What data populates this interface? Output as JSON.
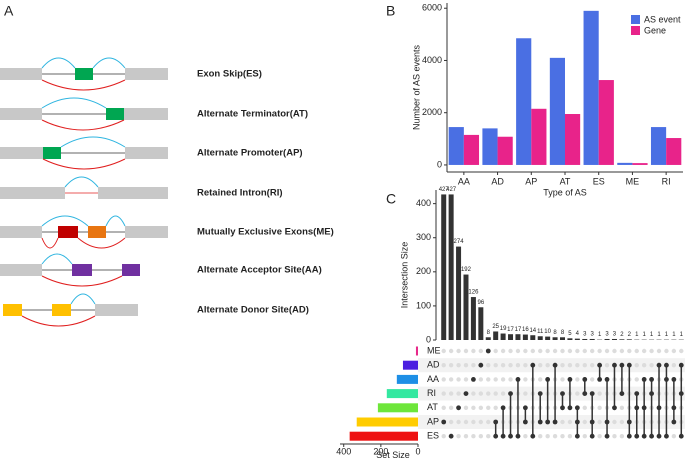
{
  "panel_labels": [
    "A",
    "B",
    "C"
  ],
  "diagram": {
    "events": [
      "Exon Skip(ES)",
      "Alternate Terminator(AT)",
      "Alternate Promoter(AP)",
      "Retained Intron(RI)",
      "Mutually Exclusive Exons(ME)",
      "Alternate Acceptor Site(AA)",
      "Alternate Donor Site(AD)"
    ]
  },
  "chart_data": [
    {
      "type": "bar",
      "categories": [
        "AA",
        "AD",
        "AP",
        "AT",
        "ES",
        "ME",
        "RI"
      ],
      "series": [
        {
          "name": "AS event",
          "color": "#4a6fe3",
          "values": [
            1450,
            1400,
            4850,
            4100,
            5900,
            80,
            1450
          ]
        },
        {
          "name": "Gene",
          "color": "#e8238a",
          "values": [
            1150,
            1080,
            2150,
            1950,
            3250,
            70,
            1030
          ]
        }
      ],
      "ylabel": "Number of AS events",
      "xlabel": "Type of AS",
      "ylim": [
        -270,
        6200
      ],
      "yticks": [
        0,
        2000,
        4000,
        6000
      ],
      "legend": "top-right"
    },
    {
      "type": "upset",
      "ylabel": "Intersection Size",
      "ylim": [
        0,
        440
      ],
      "yticks": [
        0,
        100,
        200,
        300,
        400
      ],
      "set_size_label": "Set Size",
      "set_size_lim": [
        0,
        420
      ],
      "set_size_ticks": [
        400,
        200,
        0
      ],
      "sets": [
        {
          "name": "ME",
          "size": 11,
          "color": "#e7298a"
        },
        {
          "name": "AD",
          "size": 81,
          "color": "#4b1fe0"
        },
        {
          "name": "AA",
          "size": 114,
          "color": "#1e8fe6"
        },
        {
          "name": "RI",
          "size": 168,
          "color": "#33e8a0"
        },
        {
          "name": "AT",
          "size": 216,
          "color": "#6ee63a"
        },
        {
          "name": "AP",
          "size": 330,
          "color": "#ffcc00"
        },
        {
          "name": "ES",
          "size": 368,
          "color": "#ee1111"
        }
      ],
      "intersections": [
        {
          "size": 427,
          "sets": [
            5
          ]
        },
        {
          "size": 427,
          "sets": [
            6
          ]
        },
        {
          "size": 274,
          "sets": [
            4
          ]
        },
        {
          "size": 192,
          "sets": [
            3
          ]
        },
        {
          "size": 126,
          "sets": [
            2
          ]
        },
        {
          "size": 96,
          "sets": [
            1
          ]
        },
        {
          "size": 8,
          "sets": [
            0
          ]
        },
        {
          "size": 25,
          "sets": [
            5,
            6
          ]
        },
        {
          "size": 19,
          "sets": [
            4,
            6
          ]
        },
        {
          "size": 17,
          "sets": [
            3,
            6
          ]
        },
        {
          "size": 17,
          "sets": [
            2,
            6
          ]
        },
        {
          "size": 16,
          "sets": [
            4,
            5
          ]
        },
        {
          "size": 14,
          "sets": [
            1,
            6
          ]
        },
        {
          "size": 11,
          "sets": [
            3,
            5
          ]
        },
        {
          "size": 10,
          "sets": [
            2,
            5
          ]
        },
        {
          "size": 8,
          "sets": [
            1,
            5
          ]
        },
        {
          "size": 8,
          "sets": [
            3,
            4
          ]
        },
        {
          "size": 5,
          "sets": [
            2,
            4
          ]
        },
        {
          "size": 4,
          "sets": [
            4,
            5,
            6
          ]
        },
        {
          "size": 3,
          "sets": [
            2,
            3
          ]
        },
        {
          "size": 3,
          "sets": [
            3,
            5,
            6
          ]
        },
        {
          "size": 1,
          "sets": [
            1,
            2
          ]
        },
        {
          "size": 3,
          "sets": [
            2,
            5,
            6
          ]
        },
        {
          "size": 3,
          "sets": [
            1,
            4
          ]
        },
        {
          "size": 2,
          "sets": [
            1,
            3
          ]
        },
        {
          "size": 2,
          "sets": [
            1,
            5,
            6
          ]
        },
        {
          "size": 1,
          "sets": [
            3,
            4,
            6
          ]
        },
        {
          "size": 1,
          "sets": [
            2,
            4,
            6
          ]
        },
        {
          "size": 1,
          "sets": [
            2,
            3,
            6
          ]
        },
        {
          "size": 1,
          "sets": [
            1,
            4,
            6
          ]
        },
        {
          "size": 1,
          "sets": [
            1,
            2,
            6
          ]
        },
        {
          "size": 1,
          "sets": [
            2,
            4,
            5
          ]
        },
        {
          "size": 1,
          "sets": [
            1,
            3,
            6
          ]
        }
      ]
    }
  ]
}
